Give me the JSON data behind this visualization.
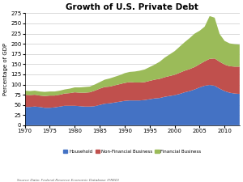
{
  "title": "Growth of U.S. Private Debt",
  "ylabel": "Percentage of GDP",
  "source": "Source Data: Federal Reserve Economic Database (FRED)",
  "ylim": [
    0,
    275
  ],
  "yticks": [
    0,
    25,
    50,
    75,
    100,
    125,
    150,
    175,
    200,
    225,
    250,
    275
  ],
  "years": [
    1970,
    1971,
    1972,
    1973,
    1974,
    1975,
    1976,
    1977,
    1978,
    1979,
    1980,
    1981,
    1982,
    1983,
    1984,
    1985,
    1986,
    1987,
    1988,
    1989,
    1990,
    1991,
    1992,
    1993,
    1994,
    1995,
    1996,
    1997,
    1998,
    1999,
    2000,
    2001,
    2002,
    2003,
    2004,
    2005,
    2006,
    2007,
    2008,
    2009,
    2010,
    2011,
    2012,
    2013
  ],
  "household": [
    45,
    45,
    46,
    45,
    43,
    43,
    44,
    46,
    48,
    48,
    48,
    47,
    46,
    46,
    47,
    50,
    53,
    54,
    56,
    58,
    60,
    61,
    61,
    61,
    62,
    64,
    66,
    67,
    70,
    72,
    74,
    77,
    81,
    84,
    88,
    93,
    97,
    99,
    97,
    90,
    84,
    80,
    78,
    77
  ],
  "non_financial": [
    30,
    29,
    29,
    28,
    29,
    30,
    29,
    29,
    30,
    31,
    33,
    33,
    34,
    35,
    38,
    40,
    41,
    41,
    42,
    43,
    44,
    45,
    44,
    44,
    44,
    45,
    46,
    47,
    48,
    49,
    50,
    52,
    53,
    54,
    55,
    57,
    60,
    64,
    67,
    66,
    65,
    65,
    66,
    67
  ],
  "financial": [
    10,
    10,
    10,
    10,
    10,
    10,
    10,
    10,
    10,
    11,
    12,
    13,
    14,
    14,
    15,
    16,
    18,
    20,
    21,
    22,
    24,
    25,
    27,
    29,
    31,
    34,
    37,
    42,
    48,
    53,
    58,
    64,
    70,
    76,
    82,
    82,
    85,
    105,
    100,
    68,
    58,
    56,
    55,
    54
  ],
  "household_color": "#4472c4",
  "non_financial_color": "#c0504d",
  "financial_color": "#9bbb59",
  "background_color": "#ffffff",
  "legend_labels": [
    "Household",
    "Non-Financial Business",
    "Financial Business"
  ],
  "xticks": [
    1970,
    1975,
    1980,
    1985,
    1990,
    1995,
    2000,
    2005,
    2010
  ]
}
